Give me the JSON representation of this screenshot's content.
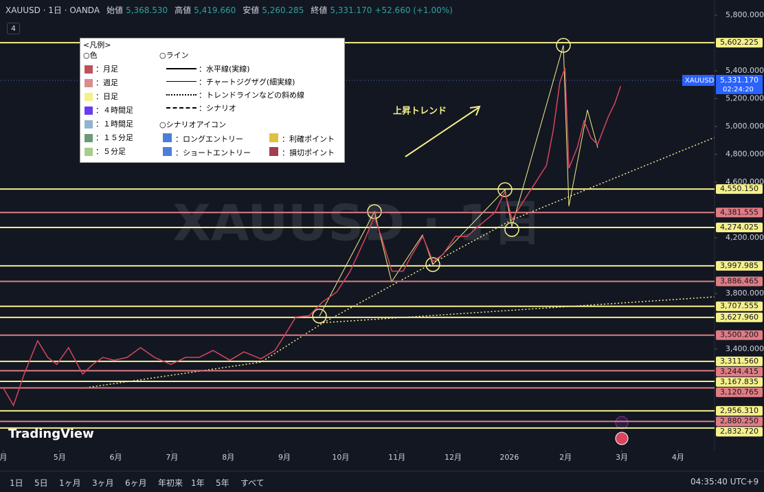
{
  "header": {
    "symbol": "XAUUSD · 1日 · OANDA",
    "open_label": "始値",
    "open": "5,368.530",
    "high_label": "高値",
    "high": "5,419.660",
    "low_label": "安値",
    "low": "5,260.285",
    "close_label": "終値",
    "close": "5,331.170",
    "change": "+52.660 (+1.00%)",
    "indicators": "4"
  },
  "legend_box": {
    "title": "<凡例>",
    "colors_heading": "○色",
    "lines_heading": "○ライン",
    "icons_heading": "○シナリオアイコン",
    "colors": [
      {
        "label": "：月足",
        "color": "#c0505a"
      },
      {
        "label": "：週足",
        "color": "#d98b8f"
      },
      {
        "label": "：日足",
        "color": "#f5f08a"
      },
      {
        "label": "：４時間足",
        "color": "#6a3cf0"
      },
      {
        "label": "：１時間足",
        "color": "#8fb4d0"
      },
      {
        "label": "：１５分足",
        "color": "#6a9a78"
      },
      {
        "label": "：５分足",
        "color": "#a8cc8a"
      }
    ],
    "lines": [
      "：水平線(実線)",
      "：チャートジグザグ(細実線)",
      "：トレンドラインなどの斜め線",
      "：シナリオ"
    ],
    "icons": [
      "：ロングエントリー",
      "：ショートエントリー",
      "：利確ポイント",
      "：損切ポイント"
    ]
  },
  "toolbar": {
    "ranges": [
      "1日",
      "5日",
      "1ヶ月",
      "3ヶ月",
      "6ヶ月",
      "年初来",
      "1年",
      "5年",
      "すべて"
    ],
    "clock": "04:35:40 UTC+9"
  },
  "chart_data": {
    "type": "line",
    "watermark": "XAUUSD · 1日",
    "annotation": "上昇トレンド",
    "logo": "TradingView",
    "xlim": [
      -0.06,
      12.65
    ],
    "ylim": [
      2674,
      5909
    ],
    "xticks": [
      {
        "value": 0,
        "label": "月"
      },
      {
        "value": 1,
        "label": "5月"
      },
      {
        "value": 2,
        "label": "6月"
      },
      {
        "value": 3,
        "label": "7月"
      },
      {
        "value": 4,
        "label": "8月"
      },
      {
        "value": 5,
        "label": "9月"
      },
      {
        "value": 6,
        "label": "10月"
      },
      {
        "value": 7,
        "label": "11月"
      },
      {
        "value": 8,
        "label": "12月"
      },
      {
        "value": 9,
        "label": "2026"
      },
      {
        "value": 10,
        "label": "2月"
      },
      {
        "value": 11,
        "label": "3月"
      },
      {
        "value": 12,
        "label": "4月"
      }
    ],
    "yticks": [
      {
        "value": 5800,
        "label": "5,800.000"
      },
      {
        "value": 5400,
        "label": "5,400.000"
      },
      {
        "value": 5200,
        "label": "5,200.000"
      },
      {
        "value": 5000,
        "label": "5,000.000"
      },
      {
        "value": 4800,
        "label": "4,800.000"
      },
      {
        "value": 4600,
        "label": "4,600.000"
      },
      {
        "value": 4200,
        "label": "4,200.000"
      },
      {
        "value": 3800,
        "label": "3,800.000"
      },
      {
        "value": 3400,
        "label": "3,400.000"
      }
    ],
    "series": [
      {
        "name": "XAUUSD",
        "color": "#d9455f",
        "x": [
          0,
          0.18,
          0.37,
          0.61,
          0.79,
          0.95,
          1.16,
          1.41,
          1.59,
          1.77,
          1.97,
          2.2,
          2.44,
          2.69,
          2.98,
          3.24,
          3.48,
          3.73,
          4.03,
          4.28,
          4.58,
          4.83,
          5.02,
          5.2,
          5.44,
          5.68,
          5.93,
          6.17,
          6.42,
          6.6,
          6.72,
          6.91,
          7.11,
          7.27,
          7.46,
          7.64,
          7.82,
          8.04,
          8.25,
          8.5,
          8.74,
          8.92,
          9.05,
          9.23,
          9.47,
          9.66,
          9.78,
          9.9,
          9.99,
          10.06,
          10.21,
          10.33,
          10.45,
          10.57,
          10.76,
          10.88,
          10.98
        ],
        "values": [
          3120,
          2995,
          3220,
          3460,
          3340,
          3290,
          3410,
          3220,
          3290,
          3340,
          3320,
          3340,
          3410,
          3340,
          3290,
          3340,
          3340,
          3390,
          3320,
          3380,
          3330,
          3390,
          3510,
          3630,
          3640,
          3740,
          3810,
          3960,
          4180,
          4350,
          4210,
          3960,
          3960,
          4080,
          4210,
          4030,
          4080,
          4210,
          4210,
          4300,
          4380,
          4530,
          4330,
          4450,
          4600,
          4720,
          4970,
          5320,
          5420,
          4700,
          4850,
          5040,
          4920,
          4870,
          5070,
          5170,
          5290
        ]
      }
    ],
    "last_price": {
      "value": 5331.17,
      "label": "5,331.170",
      "symbol": "XAUUSD",
      "countdown": "02:24:20"
    },
    "levels": [
      {
        "value": 5602.225,
        "label": "5,602.225",
        "color": "#f5f08a"
      },
      {
        "value": 4550.15,
        "label": "4,550.150",
        "color": "#f5f08a"
      },
      {
        "value": 4381.555,
        "label": "4,381.555",
        "color": "#e07c84"
      },
      {
        "value": 4274.025,
        "label": "4,274.025",
        "color": "#f5f08a"
      },
      {
        "value": 3997.985,
        "label": "3,997.985",
        "color": "#f5f08a"
      },
      {
        "value": 3886.465,
        "label": "3,886.465",
        "color": "#e07c84"
      },
      {
        "value": 3707.555,
        "label": "3,707.555",
        "color": "#f5f08a"
      },
      {
        "value": 3627.96,
        "label": "3,627.960",
        "color": "#f5f08a"
      },
      {
        "value": 3500.2,
        "label": "3,500.200",
        "color": "#e07c84"
      },
      {
        "value": 3311.56,
        "label": "3,311.560",
        "color": "#f5f08a"
      },
      {
        "value": 3244.415,
        "label": "3,244.415",
        "color": "#e07c84"
      },
      {
        "value": 3167.835,
        "label": "3,167.835",
        "color": "#f5f08a"
      },
      {
        "value": 3120.765,
        "label": "3,120.765",
        "color": "#e07c84"
      },
      {
        "value": 2956.31,
        "label": "2,956.310",
        "color": "#f5f08a"
      },
      {
        "value": 2880.25,
        "label": "2,880.250",
        "color": "#e07c84"
      },
      {
        "value": 2832.72,
        "label": "2,832.720",
        "color": "#f5f08a"
      }
    ]
  }
}
